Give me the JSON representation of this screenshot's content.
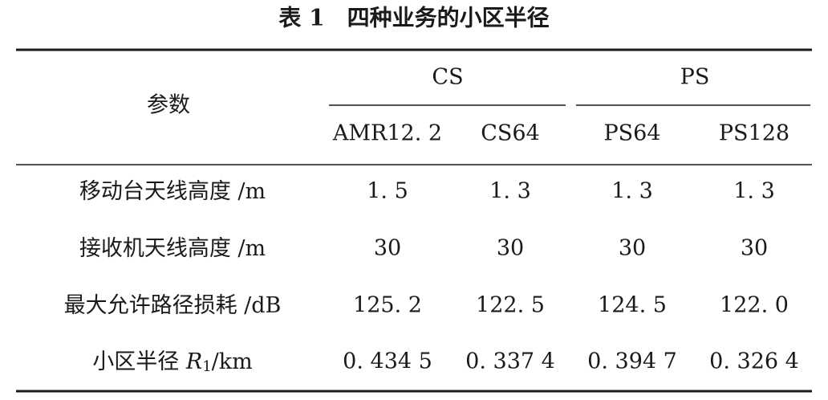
{
  "table": {
    "title": "表 1　四种业务的小区半径",
    "param_header": "参数",
    "groups": [
      "CS",
      "PS"
    ],
    "columns": [
      "AMR12. 2",
      "CS64",
      "PS64",
      "PS128"
    ],
    "rows": [
      {
        "label": [
          "移动台天线高度 /m"
        ],
        "cells": [
          "1. 5",
          "1. 3",
          "1. 3",
          "1. 3"
        ]
      },
      {
        "label": [
          "接收机天线高度 /m"
        ],
        "cells": [
          "30",
          "30",
          "30",
          "30"
        ]
      },
      {
        "label": [
          "最大允许路径损耗 /dB"
        ],
        "cells": [
          "125. 2",
          "122. 5",
          "124. 5",
          "122. 0"
        ]
      },
      {
        "label": [
          "小区半径 ",
          "R",
          "1",
          "/km"
        ],
        "cells": [
          "0. 434 5",
          "0. 337 4",
          "0. 394 7",
          "0. 326 4"
        ]
      }
    ]
  }
}
